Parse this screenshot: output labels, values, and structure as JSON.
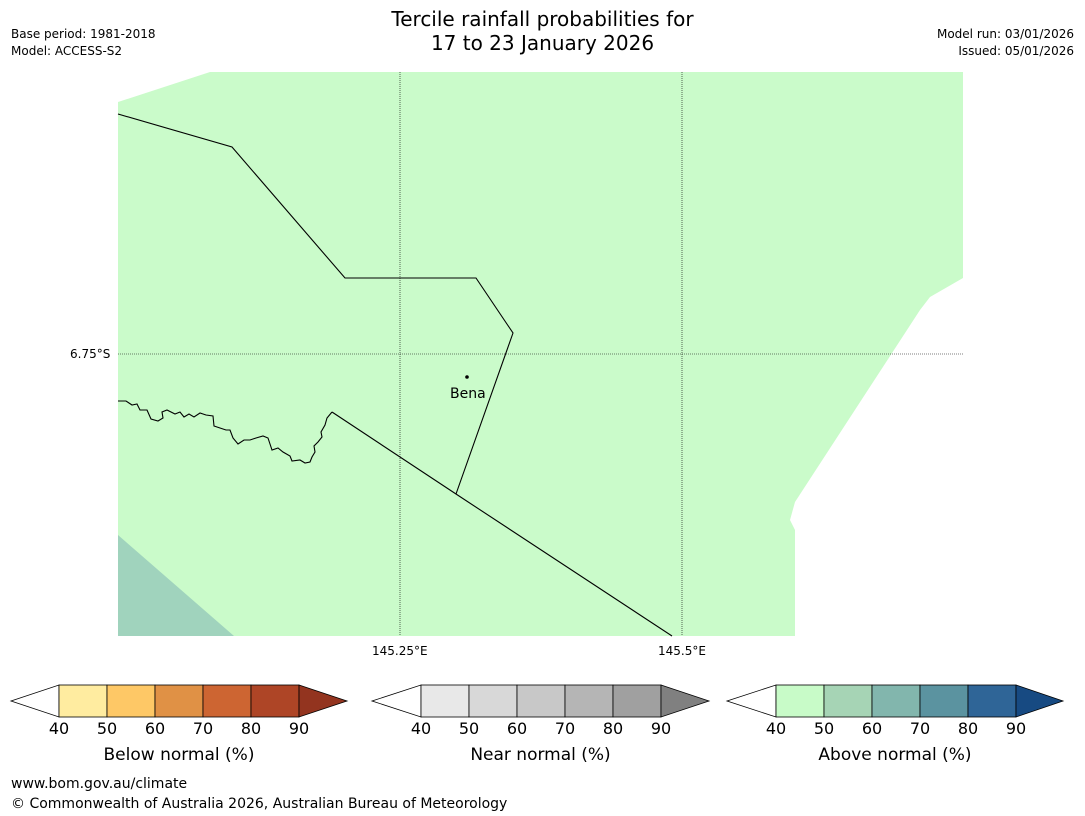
{
  "header": {
    "title_line1": "Tercile rainfall probabilities for",
    "title_line2": "17 to 23 January 2026",
    "base_period": "Base period: 1981-2018",
    "model": "Model: ACCESS-S2",
    "model_run": "Model run: 03/01/2026",
    "issued": "Issued: 05/01/2026"
  },
  "map": {
    "lat_label": "6.75°S",
    "lon_labels": [
      "145.25°E",
      "145.5°E"
    ],
    "place": "Bena",
    "land_color": "#cafbca",
    "dark_color": "#a0d3bd",
    "border_color": "#000000"
  },
  "colorbars": [
    {
      "label": "Below normal (%)",
      "ticks": [
        "40",
        "50",
        "60",
        "70",
        "80",
        "90"
      ],
      "colors": [
        "#ffffff",
        "#ffeca0",
        "#fec866",
        "#e09145",
        "#cd6532",
        "#ae4526",
        "#93341f"
      ]
    },
    {
      "label": "Near normal (%)",
      "ticks": [
        "40",
        "50",
        "60",
        "70",
        "80",
        "90"
      ],
      "colors": [
        "#ffffff",
        "#e8e8e8",
        "#d8d8d8",
        "#c8c8c8",
        "#b5b5b5",
        "#a0a0a0",
        "#808080"
      ]
    },
    {
      "label": "Above normal (%)",
      "ticks": [
        "40",
        "50",
        "60",
        "70",
        "80",
        "90"
      ],
      "colors": [
        "#ffffff",
        "#c8fbc8",
        "#a6d4b5",
        "#82b6ad",
        "#5b93a0",
        "#2f6597",
        "#174a82"
      ]
    }
  ],
  "footer": {
    "url": "www.bom.gov.au/climate",
    "copyright": "© Commonwealth of Australia 2026, Australian Bureau of Meteorology"
  }
}
